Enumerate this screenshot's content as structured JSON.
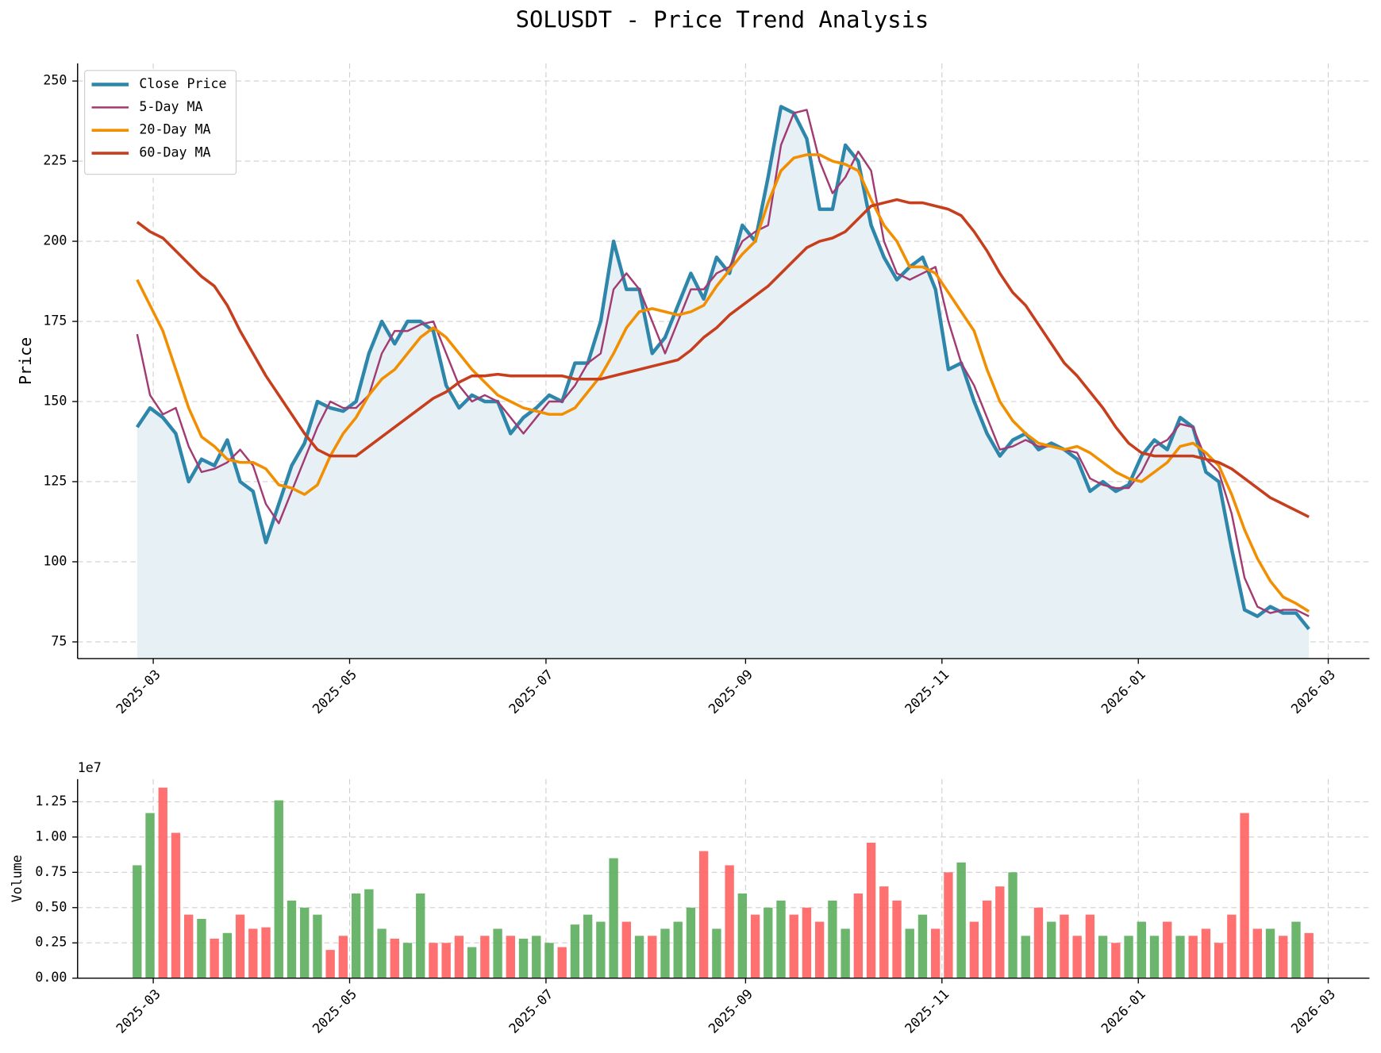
{
  "chart_data": [
    {
      "type": "line",
      "title": "SOLUSDT - Price Trend Analysis",
      "ylabel": "Price",
      "x": [
        0,
        4,
        8,
        12,
        16,
        20,
        24,
        28,
        32,
        36,
        40,
        44,
        48,
        52,
        56,
        60,
        64,
        68,
        72,
        76,
        80,
        84,
        88,
        92,
        96,
        100,
        104,
        108,
        112,
        116,
        120,
        124,
        128,
        132,
        136,
        140,
        144,
        148,
        152,
        156,
        160,
        164,
        168,
        172,
        176,
        180,
        184,
        188,
        192,
        196,
        200,
        204,
        208,
        212,
        216,
        220,
        224,
        228,
        232,
        236,
        240,
        244,
        248,
        252,
        256,
        260,
        264,
        268,
        272,
        276,
        280,
        284,
        288,
        292,
        296,
        300,
        304,
        308,
        312,
        316,
        320,
        324,
        328,
        332,
        336,
        340,
        344,
        348,
        352,
        356,
        360,
        364
      ],
      "series": [
        {
          "name": "Close Price",
          "color": "#2e86ab",
          "width": 4,
          "fill": true,
          "fill_color": "#e6f0f5",
          "values": [
            142,
            148,
            145,
            140,
            125,
            132,
            130,
            138,
            125,
            122,
            106,
            118,
            130,
            137,
            150,
            148,
            147,
            150,
            165,
            175,
            168,
            175,
            175,
            172,
            155,
            148,
            152,
            150,
            150,
            140,
            145,
            148,
            152,
            150,
            162,
            162,
            175,
            200,
            185,
            185,
            165,
            170,
            180,
            190,
            182,
            195,
            190,
            205,
            200,
            220,
            242,
            240,
            232,
            210,
            210,
            230,
            225,
            205,
            195,
            188,
            192,
            195,
            185,
            160,
            162,
            150,
            140,
            133,
            138,
            140,
            135,
            137,
            135,
            132,
            122,
            125,
            122,
            124,
            133,
            138,
            135,
            145,
            142,
            128,
            125,
            104,
            85,
            83,
            86,
            84,
            84,
            79
          ]
        },
        {
          "name": "5-Day MA",
          "color": "#a23b72",
          "width": 2.2,
          "fill": false,
          "values": [
            171,
            152,
            146,
            148,
            136,
            128,
            129,
            131,
            135,
            130,
            118,
            112,
            122,
            132,
            142,
            150,
            148,
            148,
            152,
            165,
            172,
            172,
            174,
            175,
            165,
            155,
            150,
            152,
            150,
            145,
            140,
            145,
            150,
            150,
            155,
            162,
            165,
            185,
            190,
            185,
            175,
            165,
            175,
            185,
            185,
            190,
            192,
            200,
            203,
            205,
            230,
            240,
            241,
            225,
            215,
            220,
            228,
            222,
            200,
            190,
            188,
            190,
            192,
            175,
            162,
            155,
            145,
            135,
            136,
            138,
            136,
            136,
            135,
            134,
            126,
            124,
            123,
            123,
            128,
            136,
            138,
            143,
            142,
            132,
            128,
            115,
            95,
            86,
            84,
            85,
            85,
            83
          ]
        },
        {
          "name": "20-Day MA",
          "color": "#f18f01",
          "width": 3.2,
          "fill": false,
          "values": [
            188,
            180,
            172,
            160,
            148,
            139,
            136,
            132,
            131,
            131,
            129,
            124,
            123,
            121,
            124,
            133,
            140,
            145,
            152,
            157,
            160,
            165,
            170,
            173,
            170,
            165,
            160,
            156,
            152,
            150,
            148,
            147,
            146,
            146,
            148,
            153,
            158,
            165,
            173,
            178,
            179,
            178,
            177,
            178,
            180,
            186,
            191,
            196,
            200,
            212,
            222,
            226,
            227,
            227,
            225,
            224,
            222,
            213,
            205,
            200,
            192,
            192,
            190,
            184,
            178,
            172,
            160,
            150,
            144,
            140,
            137,
            136,
            135,
            136,
            134,
            131,
            128,
            126,
            125,
            128,
            131,
            136,
            137,
            134,
            130,
            121,
            110,
            101,
            94,
            89,
            87,
            84.5
          ]
        },
        {
          "name": "60-Day MA",
          "color": "#c73e1d",
          "width": 3.2,
          "fill": false,
          "values": [
            206,
            203,
            201,
            197,
            193,
            189,
            186,
            180,
            172,
            165,
            158,
            152,
            146,
            140,
            135,
            133,
            133,
            133,
            136,
            139,
            142,
            145,
            148,
            151,
            153,
            156,
            158,
            158,
            158.5,
            158,
            158,
            158,
            158,
            158,
            157,
            157,
            157,
            158,
            159,
            160,
            161,
            162,
            163,
            166,
            170,
            173,
            177,
            180,
            183,
            186,
            190,
            194,
            198,
            200,
            201,
            203,
            207,
            211,
            212,
            213,
            212,
            212,
            211,
            210,
            208,
            203,
            197,
            190,
            184,
            180,
            174,
            168,
            162,
            158,
            153,
            148,
            142,
            137,
            134,
            133,
            133,
            133,
            133,
            132,
            131,
            129,
            126,
            123,
            120,
            118,
            116,
            114
          ]
        }
      ],
      "xlim": [
        -18.5,
        382.8
      ],
      "xticks": [
        {
          "value": 5,
          "label": "2025-03"
        },
        {
          "value": 66,
          "label": "2025-05"
        },
        {
          "value": 127,
          "label": "2025-07"
        },
        {
          "value": 189,
          "label": "2025-09"
        },
        {
          "value": 250,
          "label": "2025-11"
        },
        {
          "value": 311,
          "label": "2026-01"
        },
        {
          "value": 370,
          "label": "2026-03"
        }
      ],
      "ylim": [
        69.8,
        255.5
      ],
      "yticks": [
        75,
        100,
        125,
        150,
        175,
        200,
        225,
        250
      ],
      "grid": true,
      "legend": "upper left"
    },
    {
      "type": "bar",
      "ylabel": "Volume",
      "offset_label": "1e7",
      "x": [
        0,
        4,
        8,
        12,
        16,
        20,
        24,
        28,
        32,
        36,
        40,
        44,
        48,
        52,
        56,
        60,
        64,
        68,
        72,
        76,
        80,
        84,
        88,
        92,
        96,
        100,
        104,
        108,
        112,
        116,
        120,
        124,
        128,
        132,
        136,
        140,
        144,
        148,
        152,
        156,
        160,
        164,
        168,
        172,
        176,
        180,
        184,
        188,
        192,
        196,
        200,
        204,
        208,
        212,
        216,
        220,
        224,
        228,
        232,
        236,
        240,
        244,
        248,
        252,
        256,
        260,
        264,
        268,
        272,
        276,
        280,
        284,
        288,
        292,
        296,
        300,
        304,
        308,
        312,
        316,
        320,
        324,
        328,
        332,
        336,
        340,
        344,
        348,
        352,
        356,
        360,
        364
      ],
      "values": [
        0.8,
        1.17,
        1.35,
        1.03,
        0.45,
        0.42,
        0.28,
        0.32,
        0.45,
        0.35,
        0.36,
        1.26,
        0.55,
        0.5,
        0.45,
        0.2,
        0.3,
        0.6,
        0.63,
        0.35,
        0.28,
        0.25,
        0.6,
        0.25,
        0.25,
        0.3,
        0.22,
        0.3,
        0.35,
        0.3,
        0.28,
        0.3,
        0.25,
        0.22,
        0.38,
        0.45,
        0.4,
        0.85,
        0.4,
        0.3,
        0.3,
        0.35,
        0.4,
        0.5,
        0.9,
        0.35,
        0.8,
        0.6,
        0.45,
        0.5,
        0.55,
        0.45,
        0.5,
        0.4,
        0.55,
        0.35,
        0.6,
        0.96,
        0.65,
        0.55,
        0.35,
        0.45,
        0.35,
        0.75,
        0.82,
        0.4,
        0.55,
        0.65,
        0.75,
        0.3,
        0.5,
        0.4,
        0.45,
        0.3,
        0.45,
        0.3,
        0.25,
        0.3,
        0.4,
        0.3,
        0.4,
        0.3,
        0.3,
        0.35,
        0.25,
        0.45,
        1.17,
        0.35,
        0.35,
        0.3,
        0.4,
        0.32
      ],
      "colors": [
        "#5cad5c",
        "#5cad5c",
        "#ff6060",
        "#ff6060",
        "#ff6060",
        "#5cad5c",
        "#ff6060",
        "#5cad5c",
        "#ff6060",
        "#ff6060",
        "#ff6060",
        "#5cad5c",
        "#5cad5c",
        "#5cad5c",
        "#5cad5c",
        "#ff6060",
        "#ff6060",
        "#5cad5c",
        "#5cad5c",
        "#5cad5c",
        "#ff6060",
        "#5cad5c",
        "#5cad5c",
        "#ff6060",
        "#ff6060",
        "#ff6060",
        "#5cad5c",
        "#ff6060",
        "#5cad5c",
        "#ff6060",
        "#5cad5c",
        "#5cad5c",
        "#5cad5c",
        "#ff6060",
        "#5cad5c",
        "#5cad5c",
        "#5cad5c",
        "#5cad5c",
        "#ff6060",
        "#5cad5c",
        "#ff6060",
        "#5cad5c",
        "#5cad5c",
        "#5cad5c",
        "#ff6060",
        "#5cad5c",
        "#ff6060",
        "#5cad5c",
        "#ff6060",
        "#5cad5c",
        "#5cad5c",
        "#ff6060",
        "#ff6060",
        "#ff6060",
        "#5cad5c",
        "#5cad5c",
        "#ff6060",
        "#ff6060",
        "#ff6060",
        "#ff6060",
        "#5cad5c",
        "#5cad5c",
        "#ff6060",
        "#ff6060",
        "#5cad5c",
        "#ff6060",
        "#ff6060",
        "#ff6060",
        "#5cad5c",
        "#5cad5c",
        "#ff6060",
        "#5cad5c",
        "#ff6060",
        "#ff6060",
        "#ff6060",
        "#5cad5c",
        "#ff6060",
        "#5cad5c",
        "#5cad5c",
        "#5cad5c",
        "#ff6060",
        "#5cad5c",
        "#ff6060",
        "#ff6060",
        "#ff6060",
        "#ff6060",
        "#ff6060",
        "#ff6060",
        "#5cad5c",
        "#ff6060",
        "#5cad5c",
        "#ff6060"
      ],
      "xlim": [
        -18.5,
        382.8
      ],
      "xticks": [
        {
          "value": 5,
          "label": "2025-03"
        },
        {
          "value": 66,
          "label": "2025-05"
        },
        {
          "value": 127,
          "label": "2025-07"
        },
        {
          "value": 189,
          "label": "2025-09"
        },
        {
          "value": 250,
          "label": "2025-11"
        },
        {
          "value": 311,
          "label": "2026-01"
        },
        {
          "value": 370,
          "label": "2026-03"
        }
      ],
      "ylim": [
        0,
        1.41
      ],
      "yticks": [
        {
          "value": 0,
          "label": "0.00"
        },
        {
          "value": 0.25,
          "label": "0.25"
        },
        {
          "value": 0.5,
          "label": "0.50"
        },
        {
          "value": 0.75,
          "label": "0.75"
        },
        {
          "value": 1,
          "label": "1.00"
        },
        {
          "value": 1.25,
          "label": "1.25"
        }
      ],
      "grid": true
    }
  ]
}
